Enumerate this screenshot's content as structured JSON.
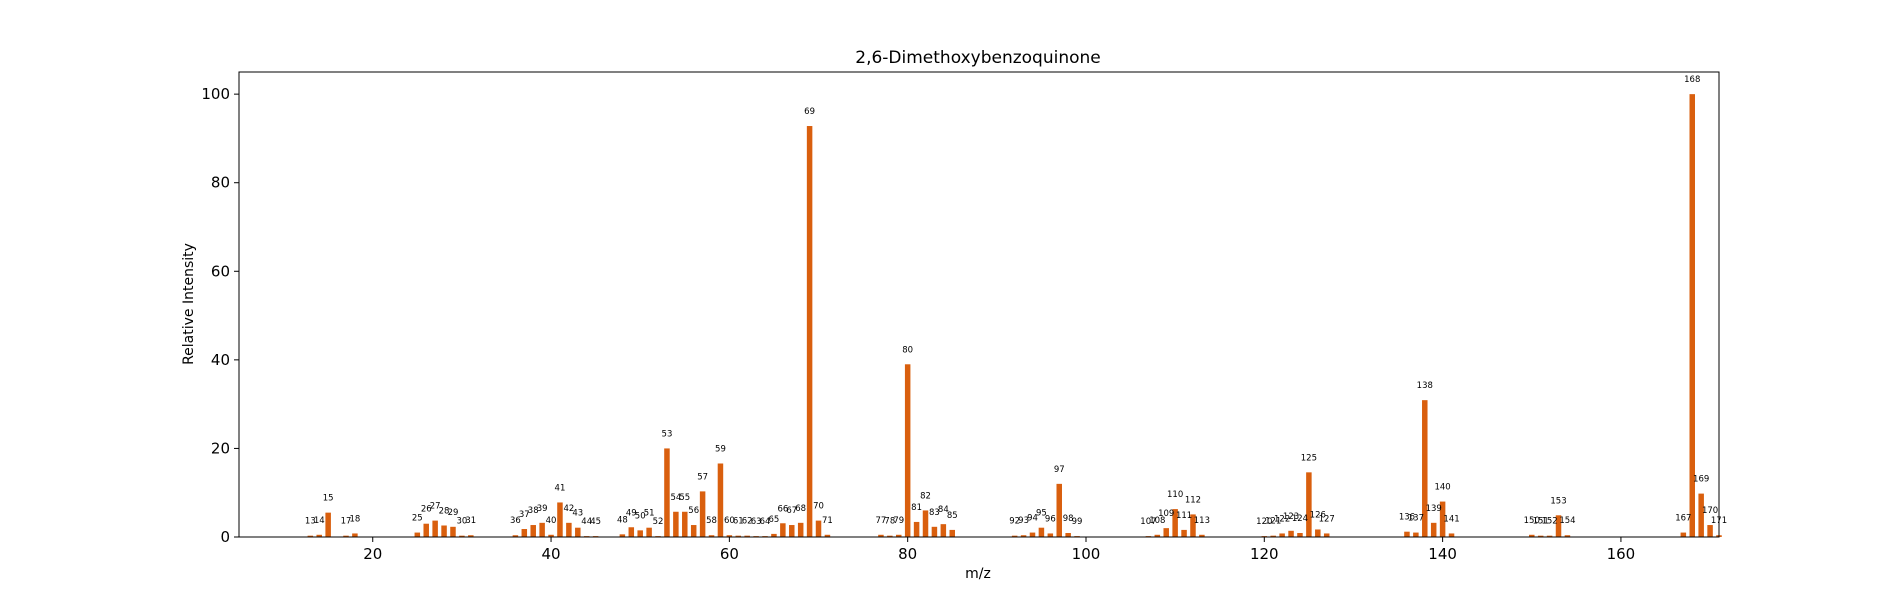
{
  "chart_data": {
    "type": "bar",
    "title": "2,6-Dimethoxybenzoquinone",
    "xlabel": "m/z",
    "ylabel": "Relative Intensity",
    "xlim": [
      5,
      171
    ],
    "ylim": [
      0,
      105
    ],
    "xticks": [
      20,
      40,
      60,
      80,
      100,
      120,
      140,
      160
    ],
    "yticks": [
      0,
      20,
      40,
      60,
      80,
      100
    ],
    "grid": false,
    "legend": "none",
    "bar_color": "#d95f0e",
    "x": [
      13,
      14,
      15,
      17,
      18,
      25,
      26,
      27,
      28,
      29,
      30,
      31,
      36,
      37,
      38,
      39,
      40,
      41,
      42,
      43,
      44,
      45,
      48,
      49,
      50,
      51,
      52,
      53,
      54,
      55,
      56,
      57,
      58,
      59,
      60,
      61,
      62,
      63,
      64,
      65,
      66,
      67,
      68,
      69,
      70,
      71,
      77,
      78,
      79,
      80,
      81,
      82,
      83,
      84,
      85,
      92,
      93,
      94,
      95,
      96,
      97,
      98,
      99,
      107,
      108,
      109,
      110,
      111,
      112,
      113,
      120,
      121,
      122,
      123,
      124,
      125,
      126,
      127,
      136,
      137,
      138,
      139,
      140,
      141,
      150,
      151,
      152,
      153,
      154,
      167,
      168,
      169,
      170,
      171
    ],
    "values": [
      0.3,
      0.5,
      5.5,
      0.3,
      0.8,
      1.0,
      3.0,
      3.7,
      2.6,
      2.3,
      0.3,
      0.4,
      0.4,
      1.8,
      2.7,
      3.2,
      0.5,
      7.8,
      3.2,
      2.1,
      0.2,
      0.2,
      0.6,
      2.2,
      1.5,
      2.1,
      0.2,
      20.0,
      5.7,
      5.7,
      2.7,
      10.3,
      0.4,
      16.6,
      0.4,
      0.3,
      0.3,
      0.2,
      0.2,
      0.7,
      3.1,
      2.7,
      3.2,
      92.8,
      3.7,
      0.5,
      0.5,
      0.3,
      0.5,
      39.0,
      3.4,
      6.0,
      2.3,
      2.9,
      1.6,
      0.3,
      0.4,
      1.0,
      2.1,
      0.8,
      12.0,
      0.9,
      0.2,
      0.2,
      0.5,
      2.0,
      6.3,
      1.6,
      5.1,
      0.5,
      0.2,
      0.3,
      0.8,
      1.4,
      0.9,
      14.6,
      1.7,
      0.8,
      1.2,
      1.0,
      30.9,
      3.2,
      8.0,
      0.8,
      0.5,
      0.3,
      0.3,
      4.9,
      0.4,
      1.0,
      100.0,
      9.8,
      2.7,
      0.4
    ]
  }
}
